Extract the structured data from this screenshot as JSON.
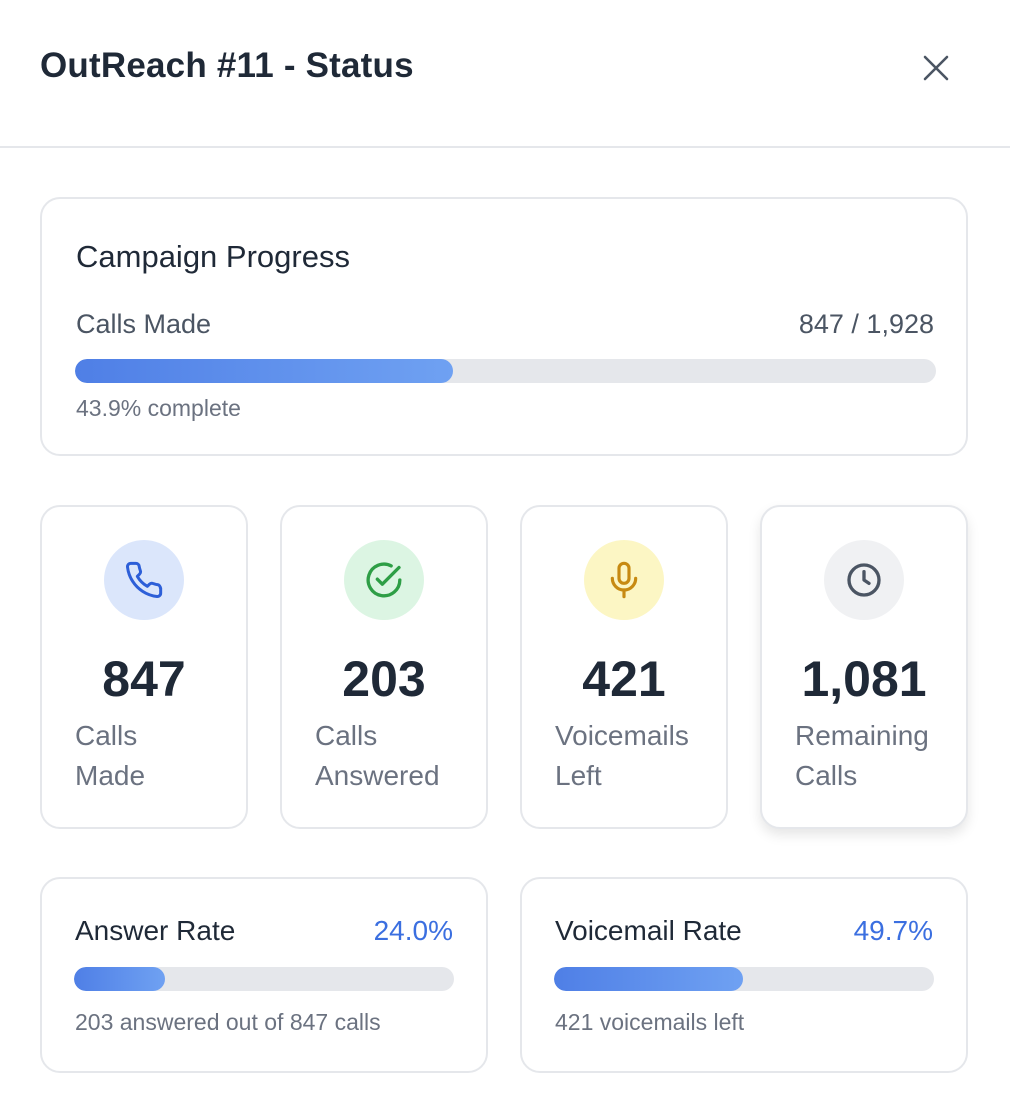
{
  "header": {
    "title": "OutReach #11 - Status",
    "close_icon": "close-icon"
  },
  "progress": {
    "title": "Campaign Progress",
    "label": "Calls Made",
    "count": "847 / 1,928",
    "percent": 43.9,
    "note": "43.9% complete"
  },
  "stats": [
    {
      "icon": "phone-icon",
      "value": "847",
      "line1": "Calls",
      "line2": "Made",
      "icon_bg": "#dbe6fb",
      "icon_color": "#2d5fd8"
    },
    {
      "icon": "check-circle-icon",
      "value": "203",
      "line1": "Calls",
      "line2": "Answered",
      "icon_bg": "#dcf5e3",
      "icon_color": "#2e9e46"
    },
    {
      "icon": "microphone-icon",
      "value": "421",
      "line1": "Voicemails",
      "line2": "Left",
      "icon_bg": "#fcf6c4",
      "icon_color": "#c78a12"
    },
    {
      "icon": "clock-icon",
      "value": "1,081",
      "line1": "Remaining",
      "line2": "Calls",
      "icon_bg": "#f0f1f3",
      "icon_color": "#4b5563"
    }
  ],
  "rates": [
    {
      "title": "Answer Rate",
      "value": "24.0%",
      "percent": 24.0,
      "note": "203 answered out of 847 calls"
    },
    {
      "title": "Voicemail Rate",
      "value": "49.7%",
      "percent": 49.7,
      "note": "421 voicemails left"
    }
  ],
  "colors": {
    "accent": "#3b6fe0",
    "bar_start": "#4f7fe6",
    "bar_end": "#6fa1f2",
    "track": "#e5e7eb"
  }
}
